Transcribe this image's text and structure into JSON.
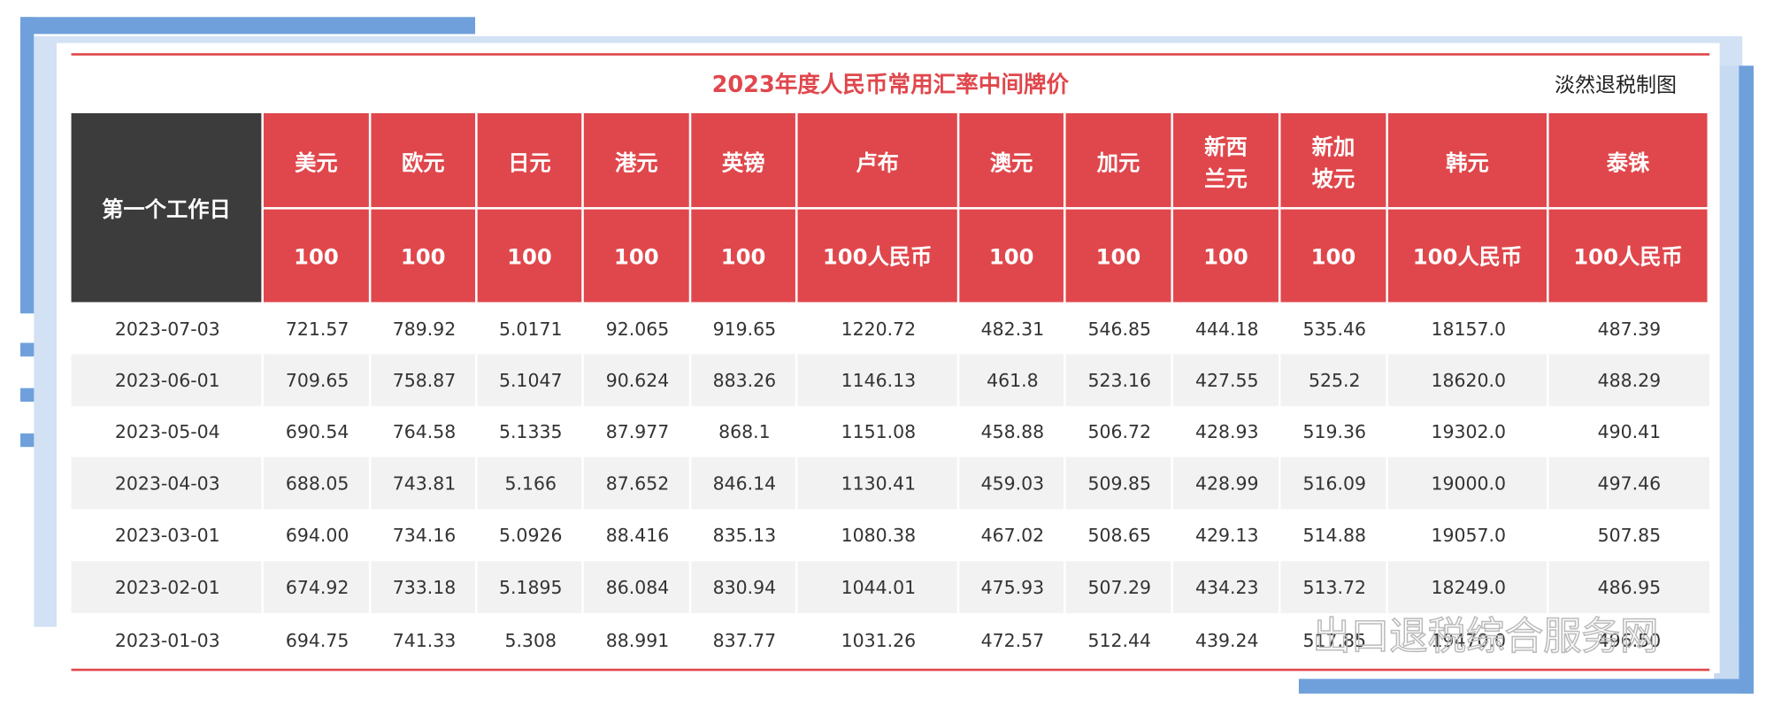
{
  "header": {
    "title": "2023年度人民币常用汇率中间牌价",
    "credit": "淡然退税制图"
  },
  "table": {
    "first_col_header": "第一个工作日",
    "columns": [
      {
        "name": "美元",
        "unit": "100"
      },
      {
        "name": "欧元",
        "unit": "100"
      },
      {
        "name": "日元",
        "unit": "100"
      },
      {
        "name": "港元",
        "unit": "100"
      },
      {
        "name": "英镑",
        "unit": "100"
      },
      {
        "name": "卢布",
        "unit": "100人民币"
      },
      {
        "name": "澳元",
        "unit": "100"
      },
      {
        "name": "加元",
        "unit": "100"
      },
      {
        "name": "新西兰元",
        "unit": "100"
      },
      {
        "name": "新加坡元",
        "unit": "100"
      },
      {
        "name": "韩元",
        "unit": "100人民币"
      },
      {
        "name": "泰铢",
        "unit": "100人民币"
      }
    ],
    "rows": [
      [
        "2023-07-03",
        "721.57",
        "789.92",
        "5.0171",
        "92.065",
        "919.65",
        "1220.72",
        "482.31",
        "546.85",
        "444.18",
        "535.46",
        "18157.0",
        "487.39"
      ],
      [
        "2023-06-01",
        "709.65",
        "758.87",
        "5.1047",
        "90.624",
        "883.26",
        "1146.13",
        "461.8",
        "523.16",
        "427.55",
        "525.2",
        "18620.0",
        "488.29"
      ],
      [
        "2023-05-04",
        "690.54",
        "764.58",
        "5.1335",
        "87.977",
        "868.1",
        "1151.08",
        "458.88",
        "506.72",
        "428.93",
        "519.36",
        "19302.0",
        "490.41"
      ],
      [
        "2023-04-03",
        "688.05",
        "743.81",
        "5.166",
        "87.652",
        "846.14",
        "1130.41",
        "459.03",
        "509.85",
        "428.99",
        "516.09",
        "19000.0",
        "497.46"
      ],
      [
        "2023-03-01",
        "694.00",
        "734.16",
        "5.0926",
        "88.416",
        "835.13",
        "1080.38",
        "467.02",
        "508.65",
        "429.13",
        "514.88",
        "19057.0",
        "507.85"
      ],
      [
        "2023-02-01",
        "674.92",
        "733.18",
        "5.1895",
        "86.084",
        "830.94",
        "1044.01",
        "475.93",
        "507.29",
        "434.23",
        "513.72",
        "18249.0",
        "486.95"
      ],
      [
        "2023-01-03",
        "694.75",
        "741.33",
        "5.308",
        "88.991",
        "837.77",
        "1031.26",
        "472.57",
        "512.44",
        "439.24",
        "517.85",
        "19470.0",
        "496.50"
      ]
    ]
  },
  "watermark": "出口退税综合服务网"
}
